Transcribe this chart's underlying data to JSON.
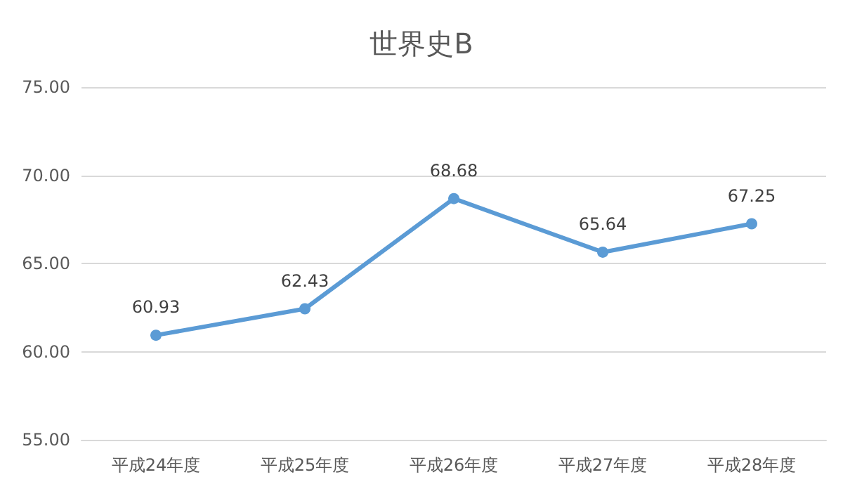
{
  "chart_data": {
    "type": "line",
    "title": "世界史B",
    "categories": [
      "平成24年度",
      "平成25年度",
      "平成26年度",
      "平成27年度",
      "平成28年度"
    ],
    "series": [
      {
        "color": "#5b9bd5",
        "values": [
          60.93,
          62.43,
          68.68,
          65.64,
          67.25
        ]
      }
    ],
    "ylim": [
      55,
      75
    ],
    "yticks": [
      {
        "value": 55,
        "label": "55.00"
      },
      {
        "value": 60,
        "label": "60.00"
      },
      {
        "value": 65,
        "label": "65.00"
      },
      {
        "value": 70,
        "label": "70.00"
      },
      {
        "value": 75,
        "label": "75.00"
      }
    ],
    "grid": "y",
    "marker": "circle",
    "line_style": "solid",
    "data_labels": true
  }
}
